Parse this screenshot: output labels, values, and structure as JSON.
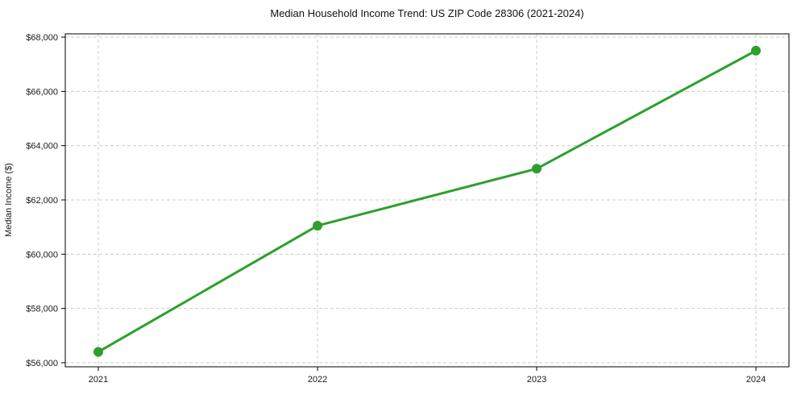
{
  "figure": {
    "title": "Median Household Income Trend: US ZIP Code 28306 (2021-2024)",
    "ylabel": "Median Income ($)"
  },
  "chart_data": {
    "type": "line",
    "title": "Median Household Income Trend: US ZIP Code 28306 (2021-2024)",
    "xlabel": "",
    "ylabel": "Median Income ($)",
    "x": [
      2021,
      2022,
      2023,
      2024
    ],
    "x_tick_labels": [
      "2021",
      "2022",
      "2023",
      "2024"
    ],
    "series": [
      {
        "name": "Median Household Income",
        "values": [
          56400,
          61050,
          63150,
          67500
        ]
      }
    ],
    "y_ticks": [
      56000,
      58000,
      60000,
      62000,
      64000,
      66000,
      68000
    ],
    "y_tick_labels": [
      "$56,000",
      "$58,000",
      "$60,000",
      "$62,000",
      "$64,000",
      "$66,000",
      "$68,000"
    ],
    "ylim": [
      55850,
      68120
    ],
    "grid": "dashed-both-axes",
    "legend": "none",
    "line_color": "#2ca02c",
    "line_width": 3,
    "marker": "circle",
    "marker_size": 6,
    "grid_color": "#cccccc",
    "axis_color": "#000000",
    "text_color": "#1a1a1a",
    "background": "#ffffff"
  }
}
